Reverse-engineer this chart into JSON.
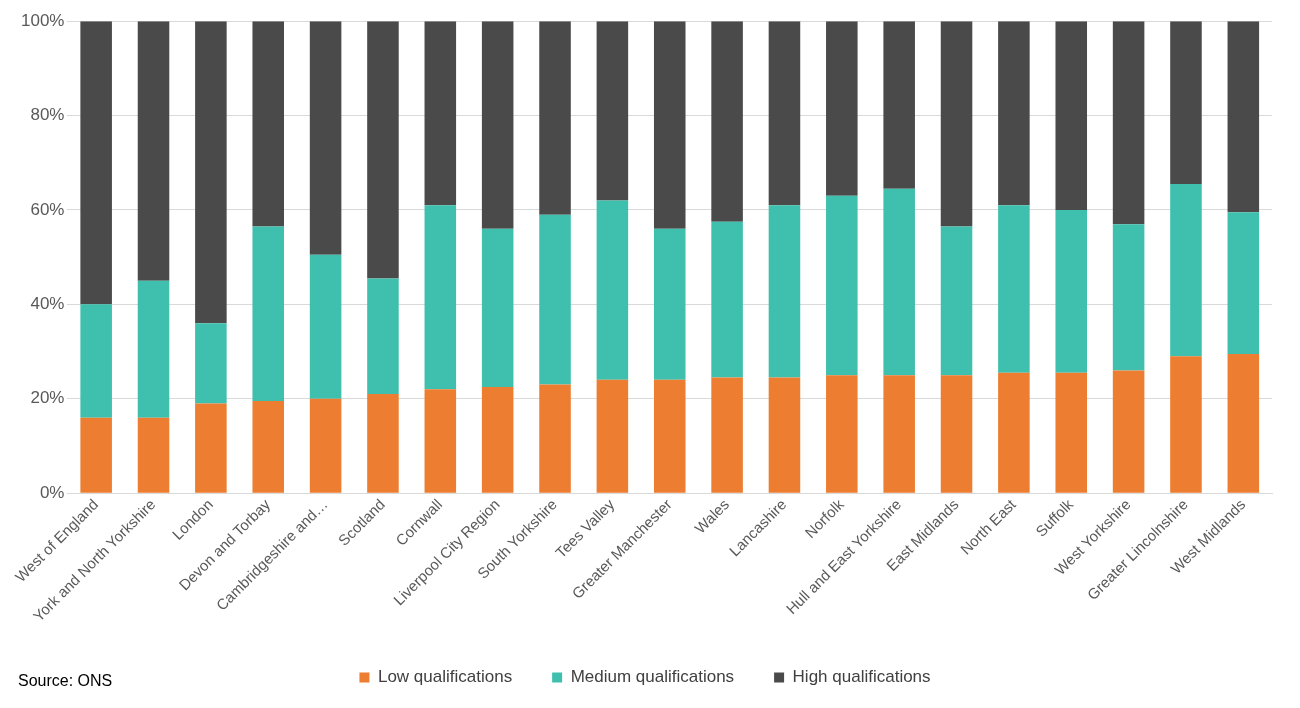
{
  "chart_data": {
    "type": "bar",
    "stacked": true,
    "categories": [
      "West of England",
      "York and North Yorkshire",
      "London",
      "Devon and Torbay",
      "Cambridgeshire and…",
      "Scotland",
      "Cornwall",
      "Liverpool City Region",
      "South Yorkshire",
      "Tees Valley",
      "Greater Manchester",
      "Wales",
      "Lancashire",
      "Norfolk",
      "Hull and East Yorkshire",
      "East Midlands",
      "North East",
      "Suffolk",
      "West Yorkshire",
      "Greater Lincolnshire",
      "West Midlands"
    ],
    "series": [
      {
        "name": "Low qualifications",
        "color": "#ed7d31",
        "values": [
          16,
          16,
          19,
          19.5,
          20,
          21,
          22,
          22.5,
          23,
          24,
          24,
          24.5,
          24.5,
          25,
          25,
          25,
          25.5,
          25.5,
          26,
          29,
          29.5
        ]
      },
      {
        "name": "Medium qualifications",
        "color": "#3fbfad",
        "values": [
          24,
          29,
          17,
          37,
          30.5,
          24.5,
          39,
          33.5,
          36,
          38,
          32,
          33,
          36.5,
          38,
          39.5,
          31.5,
          35.5,
          34.5,
          31,
          36.5,
          30
        ]
      },
      {
        "name": "High qualifications",
        "color": "#4a4a4a",
        "values": [
          60,
          55,
          64,
          43.5,
          49.5,
          54.5,
          39,
          44,
          41,
          38,
          44,
          42.5,
          39,
          37,
          35.5,
          43.5,
          39,
          40,
          43,
          34.5,
          40.5
        ]
      }
    ],
    "ylim": [
      0,
      100
    ],
    "yticks": [
      {
        "value": 0,
        "label": "0%"
      },
      {
        "value": 20,
        "label": "20%"
      },
      {
        "value": 40,
        "label": "40%"
      },
      {
        "value": 60,
        "label": "60%"
      },
      {
        "value": 80,
        "label": "80%"
      },
      {
        "value": 100,
        "label": "100%"
      }
    ],
    "grid": "y",
    "legend": "bottom",
    "annotations": [
      "Source: ONS"
    ]
  }
}
